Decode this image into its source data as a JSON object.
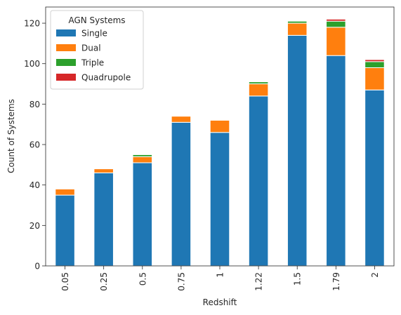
{
  "chart_data": {
    "type": "bar",
    "stacked": true,
    "categories": [
      "0.05",
      "0.25",
      "0.5",
      "0.75",
      "1",
      "1.22",
      "1.5",
      "1.79",
      "2"
    ],
    "series": [
      {
        "name": "Single",
        "color": "#1f77b4",
        "values": [
          35,
          46,
          51,
          71,
          66,
          84,
          114,
          104,
          87
        ]
      },
      {
        "name": "Dual",
        "color": "#ff7f0e",
        "values": [
          3,
          2,
          3,
          3,
          6,
          6,
          6,
          14,
          11
        ]
      },
      {
        "name": "Triple",
        "color": "#2ca02c",
        "values": [
          0,
          0,
          1,
          0,
          0,
          1,
          1,
          3,
          3
        ]
      },
      {
        "name": "Quadrupole",
        "color": "#d62728",
        "values": [
          0,
          0,
          0,
          0,
          0,
          0,
          0,
          1,
          1
        ]
      }
    ],
    "xlabel": "Redshift",
    "ylabel": "Count of Systems",
    "ylim": [
      0,
      128
    ],
    "yticks": [
      0,
      20,
      40,
      60,
      80,
      100,
      120
    ],
    "legend": {
      "title": "AGN Systems",
      "placement": "top-left"
    },
    "grid": false,
    "x_tick_rotation": "vertical"
  }
}
